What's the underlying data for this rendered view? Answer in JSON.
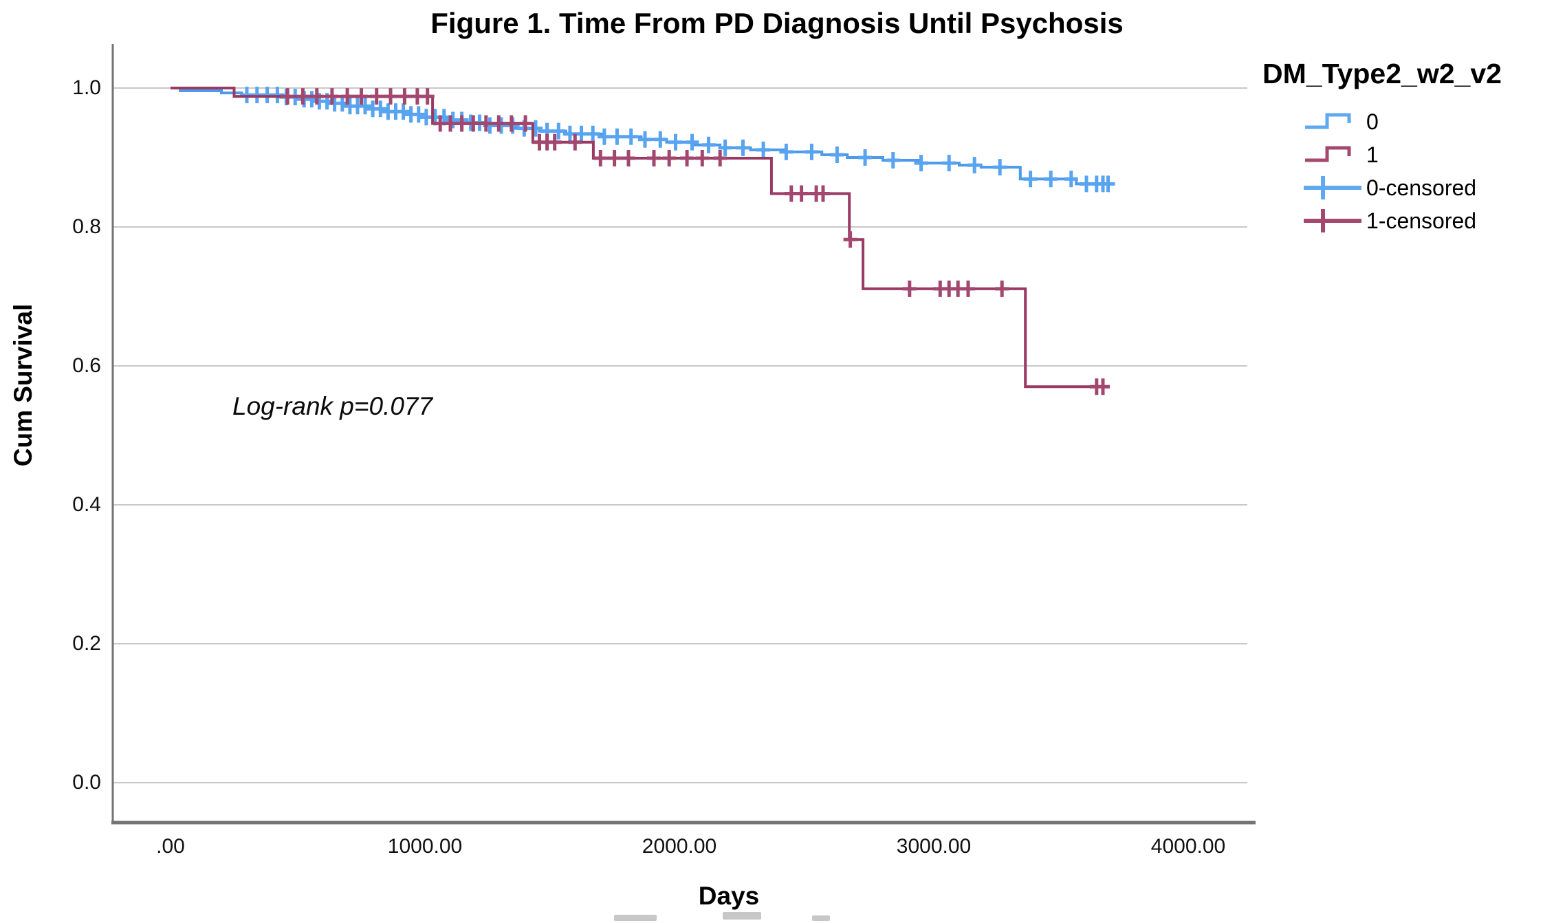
{
  "title": "Figure 1. Time From PD Diagnosis Until Psychosis",
  "annotation": "Log-rank p=0.077",
  "legend": {
    "title": "DM_Type2_w2_v2",
    "position": "right",
    "items": [
      {
        "label": "0",
        "type": "step-line",
        "color": "#5FA9F0"
      },
      {
        "label": "1",
        "type": "step-line",
        "color": "#A4486F"
      },
      {
        "label": "0-censored",
        "type": "censor-plus",
        "color": "#5FA9F0"
      },
      {
        "label": "1-censored",
        "type": "censor-plus",
        "color": "#A4486F"
      }
    ]
  },
  "chart_data": {
    "type": "line",
    "subtype": "kaplan-meier-step",
    "title": "Figure 1. Time From PD Diagnosis Until Psychosis",
    "xlabel": "Days",
    "ylabel": "Cum Survival",
    "annotation": "Log-rank p=0.077",
    "grid": true,
    "legend_position": "right",
    "xlim": [
      -230,
      4240
    ],
    "ylim": [
      -0.06,
      1.06
    ],
    "x_ticks": [
      0,
      1000,
      2000,
      3000,
      4000
    ],
    "x_tick_labels": [
      ".00",
      "1000.00",
      "2000.00",
      "3000.00",
      "4000.00"
    ],
    "y_ticks": [
      1.0,
      0.8,
      0.6,
      0.4,
      0.2,
      0.0
    ],
    "y_tick_labels": [
      "1.0",
      "0.8",
      "0.6",
      "0.4",
      "0.2",
      "0.0"
    ],
    "gridline_color": "#c8c8c8",
    "axis_color": "#737373",
    "series": [
      {
        "name": "0",
        "color": "#4D99EC",
        "censor_color": "#58A4F0",
        "end_day": 3700,
        "steps": [
          [
            0,
            1.0
          ],
          [
            38,
            0.996
          ],
          [
            200,
            0.993
          ],
          [
            280,
            0.99
          ],
          [
            430,
            0.987
          ],
          [
            500,
            0.984
          ],
          [
            560,
            0.981
          ],
          [
            630,
            0.978
          ],
          [
            700,
            0.974
          ],
          [
            780,
            0.97
          ],
          [
            850,
            0.966
          ],
          [
            920,
            0.962
          ],
          [
            1000,
            0.958
          ],
          [
            1080,
            0.954
          ],
          [
            1160,
            0.95
          ],
          [
            1250,
            0.946
          ],
          [
            1350,
            0.942
          ],
          [
            1450,
            0.938
          ],
          [
            1554,
            0.934
          ],
          [
            1700,
            0.93
          ],
          [
            1850,
            0.926
          ],
          [
            1950,
            0.922
          ],
          [
            2060,
            0.918
          ],
          [
            2160,
            0.914
          ],
          [
            2280,
            0.911
          ],
          [
            2420,
            0.908
          ],
          [
            2560,
            0.904
          ],
          [
            2660,
            0.9
          ],
          [
            2800,
            0.896
          ],
          [
            2950,
            0.892
          ],
          [
            3100,
            0.889
          ],
          [
            3186,
            0.886
          ],
          [
            3340,
            0.869
          ],
          [
            3560,
            0.862
          ]
        ],
        "censors": [
          300,
          340,
          380,
          420,
          455,
          490,
          525,
          555,
          585,
          615,
          645,
          675,
          705,
          735,
          765,
          795,
          825,
          855,
          885,
          915,
          945,
          975,
          1005,
          1040,
          1075,
          1110,
          1145,
          1180,
          1215,
          1255,
          1300,
          1345,
          1390,
          1435,
          1480,
          1525,
          1570,
          1615,
          1660,
          1705,
          1755,
          1810,
          1865,
          1925,
          1985,
          2050,
          2115,
          2180,
          2250,
          2330,
          2420,
          2520,
          2620,
          2730,
          2840,
          2950,
          3060,
          3160,
          3260,
          3380,
          3460,
          3540,
          3600,
          3640,
          3665,
          3685
        ]
      },
      {
        "name": "1",
        "color": "#993A62",
        "censor_color": "#A24770",
        "end_day": 3690,
        "steps": [
          [
            0,
            1.0
          ],
          [
            250,
            0.988
          ],
          [
            1030,
            0.949
          ],
          [
            1424,
            0.922
          ],
          [
            1662,
            0.899
          ],
          [
            2362,
            0.848
          ],
          [
            2668,
            0.782
          ],
          [
            2722,
            0.711
          ],
          [
            3360,
            0.57
          ]
        ],
        "censors": [
          460,
          520,
          575,
          635,
          695,
          750,
          810,
          865,
          920,
          970,
          1010,
          1060,
          1100,
          1145,
          1190,
          1240,
          1290,
          1340,
          1395,
          1450,
          1480,
          1510,
          1590,
          1690,
          1745,
          1800,
          1900,
          1960,
          2030,
          2090,
          2160,
          2440,
          2480,
          2538,
          2565,
          2672,
          2905,
          3025,
          3060,
          3095,
          3135,
          3268,
          3640,
          3665
        ]
      }
    ]
  }
}
